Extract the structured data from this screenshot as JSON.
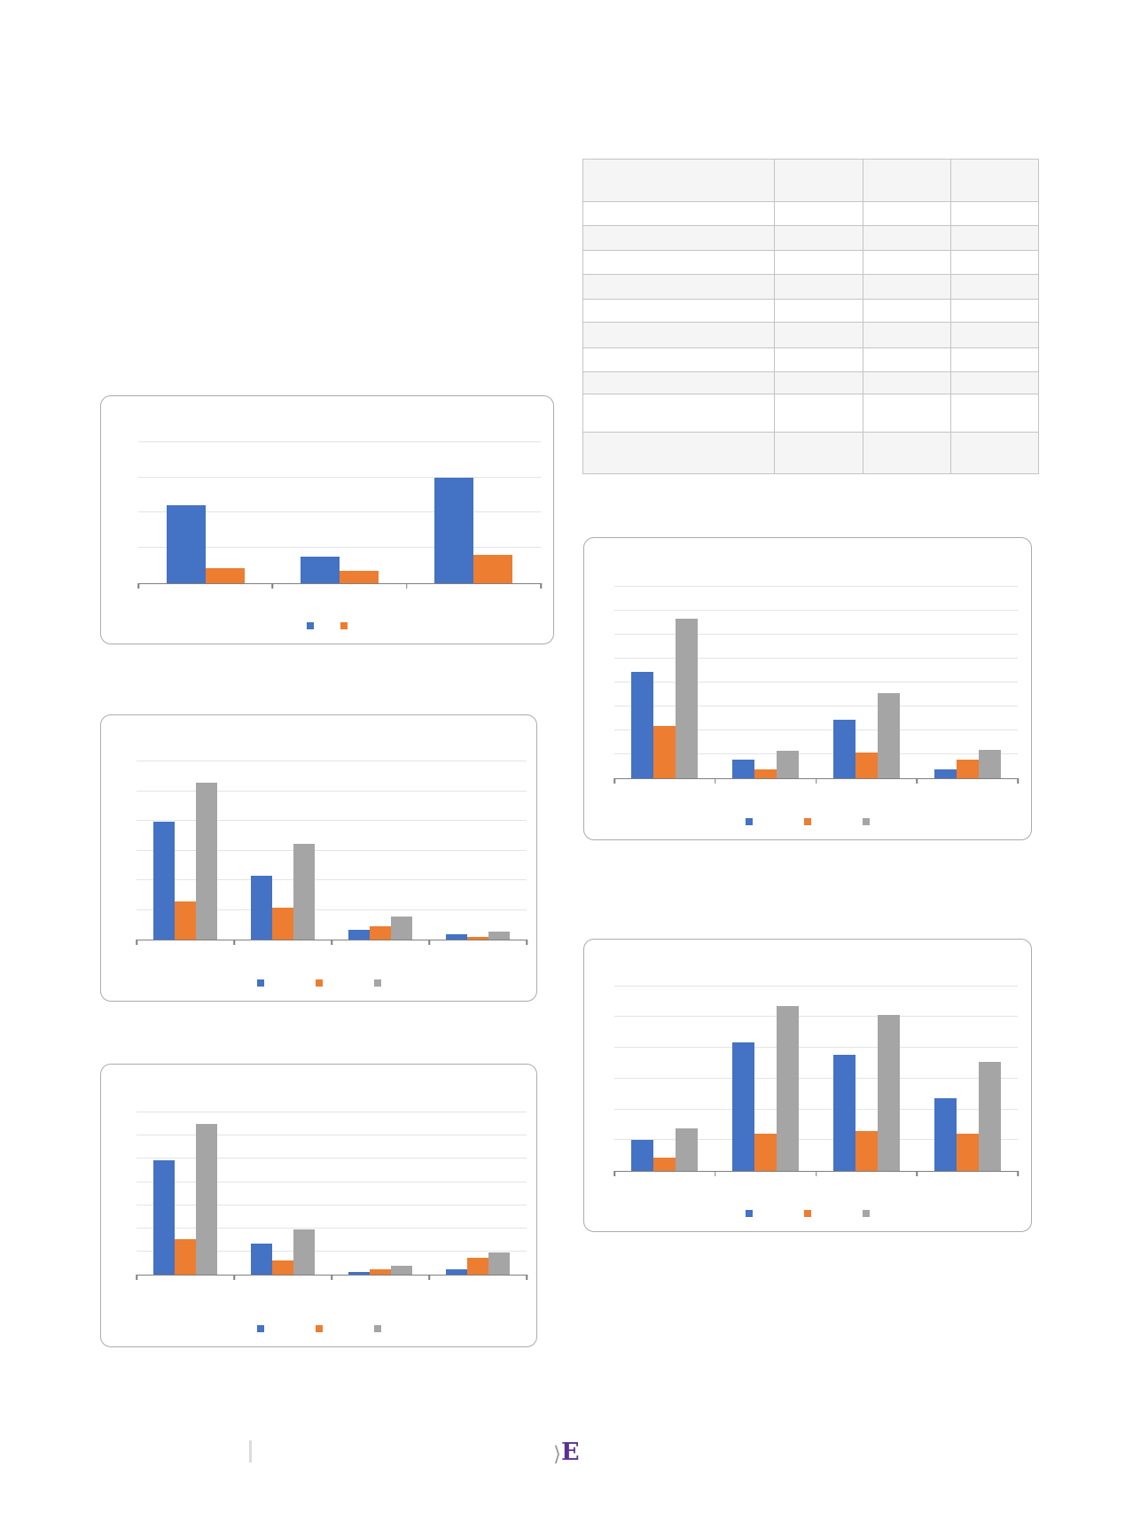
{
  "page": {
    "background": "#ffffff"
  },
  "table": {
    "columns": [
      "",
      "",
      "",
      ""
    ],
    "rows": [
      {
        "cells": [
          "",
          "",
          "",
          ""
        ]
      },
      {
        "cells": [
          "",
          "",
          "",
          ""
        ]
      },
      {
        "cells": [
          "",
          "",
          "",
          ""
        ]
      },
      {
        "cells": [
          "",
          "",
          "",
          ""
        ]
      },
      {
        "cells": [
          "",
          "",
          "",
          ""
        ]
      },
      {
        "cells": [
          "",
          "",
          "",
          ""
        ]
      },
      {
        "cells": [
          "",
          "",
          "",
          ""
        ]
      },
      {
        "cells": [
          "",
          "",
          "",
          ""
        ]
      },
      {
        "cells": [
          "",
          "",
          "",
          ""
        ]
      },
      {
        "cells": [
          "",
          "",
          "",
          ""
        ]
      },
      {
        "cells": [
          "",
          "",
          "",
          ""
        ]
      }
    ],
    "border_color": "#c4c4c4",
    "shade_color": "#f5f5f5"
  },
  "chart_data": [
    {
      "type": "bar",
      "title": "",
      "xlabel": "",
      "ylabel": "",
      "categories": [
        "",
        "",
        ""
      ],
      "series": [
        {
          "name": "",
          "color": "#4472c4",
          "values": [
            2.2,
            0.76,
            3.0
          ]
        },
        {
          "name": "",
          "color": "#ed7d31",
          "values": [
            0.42,
            0.36,
            0.8
          ]
        }
      ],
      "ylim": [
        0,
        5
      ],
      "gridline_step": 1,
      "grid": true,
      "legend_position": "bottom",
      "axis_color": "#7f7f7f",
      "grid_color": "#e4e4e4"
    },
    {
      "type": "bar",
      "title": "",
      "xlabel": "",
      "ylabel": "",
      "categories": [
        "",
        "",
        "",
        ""
      ],
      "series": [
        {
          "name": "",
          "color": "#4472c4",
          "values": [
            3.98,
            2.15,
            0.33,
            0.18
          ]
        },
        {
          "name": "",
          "color": "#ed7d31",
          "values": [
            1.29,
            1.08,
            0.45,
            0.09
          ]
        },
        {
          "name": "",
          "color": "#a5a5a5",
          "values": [
            5.29,
            3.23,
            0.78,
            0.27
          ]
        }
      ],
      "ylim": [
        0,
        7
      ],
      "gridline_step": 1,
      "grid": true,
      "legend_position": "bottom",
      "axis_color": "#7f7f7f",
      "grid_color": "#e4e4e4"
    },
    {
      "type": "bar",
      "title": "",
      "xlabel": "",
      "ylabel": "",
      "categories": [
        "",
        "",
        "",
        ""
      ],
      "series": [
        {
          "name": "",
          "color": "#4472c4",
          "values": [
            4.94,
            1.34,
            0.11,
            0.23
          ]
        },
        {
          "name": "",
          "color": "#ed7d31",
          "values": [
            1.53,
            0.61,
            0.23,
            0.73
          ]
        },
        {
          "name": "",
          "color": "#a5a5a5",
          "values": [
            6.51,
            1.95,
            0.38,
            0.96
          ]
        }
      ],
      "ylim": [
        0,
        8
      ],
      "gridline_step": 1,
      "grid": true,
      "legend_position": "bottom",
      "axis_color": "#7f7f7f",
      "grid_color": "#e4e4e4"
    },
    {
      "type": "bar",
      "title": "",
      "xlabel": "",
      "ylabel": "",
      "categories": [
        "",
        "",
        "",
        ""
      ],
      "series": [
        {
          "name": "",
          "color": "#4472c4",
          "values": [
            4.44,
            0.78,
            2.44,
            0.37
          ]
        },
        {
          "name": "",
          "color": "#ed7d31",
          "values": [
            2.19,
            0.37,
            1.07,
            0.78
          ]
        },
        {
          "name": "",
          "color": "#a5a5a5",
          "values": [
            6.67,
            1.15,
            3.56,
            1.19
          ]
        }
      ],
      "ylim": [
        0,
        9
      ],
      "gridline_step": 1,
      "grid": true,
      "legend_position": "bottom",
      "axis_color": "#7f7f7f",
      "grid_color": "#e4e4e4"
    },
    {
      "type": "bar",
      "title": "",
      "xlabel": "",
      "ylabel": "",
      "categories": [
        "",
        "",
        "",
        ""
      ],
      "series": [
        {
          "name": "",
          "color": "#4472c4",
          "values": [
            1.01,
            4.18,
            3.77,
            2.36
          ]
        },
        {
          "name": "",
          "color": "#ed7d31",
          "values": [
            0.43,
            1.21,
            1.3,
            1.21
          ]
        },
        {
          "name": "",
          "color": "#a5a5a5",
          "values": [
            1.38,
            5.36,
            5.07,
            3.54
          ]
        }
      ],
      "ylim": [
        0,
        7
      ],
      "gridline_step": 1,
      "grid": true,
      "legend_position": "bottom",
      "axis_color": "#7f7f7f",
      "grid_color": "#e4e4e4"
    }
  ],
  "footer": {
    "logo_chevron": "⟩",
    "logo_letter": "E",
    "logo_chevron_color": "#9a9a9a",
    "logo_letter_color": "#5a3191"
  }
}
